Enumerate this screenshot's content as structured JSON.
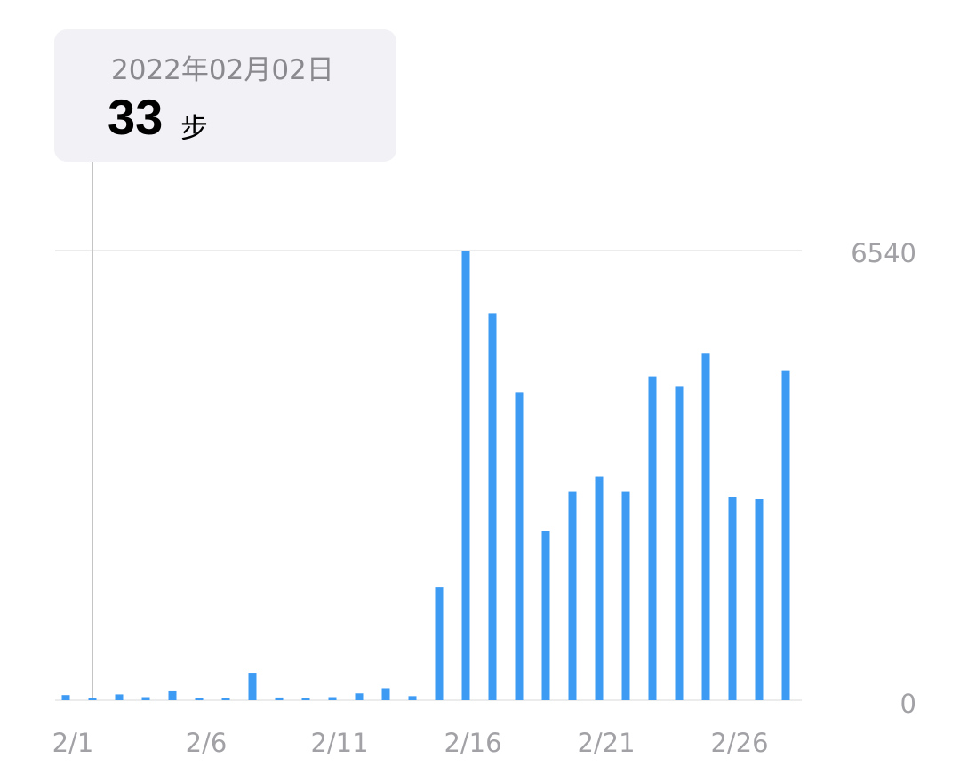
{
  "tooltip": {
    "date": "2022年02月02日",
    "value": "33",
    "unit": "步"
  },
  "chart_data": {
    "type": "bar",
    "x": [
      "2/1",
      "2/2",
      "2/3",
      "2/4",
      "2/5",
      "2/6",
      "2/7",
      "2/8",
      "2/9",
      "2/10",
      "2/11",
      "2/12",
      "2/13",
      "2/14",
      "2/15",
      "2/16",
      "2/17",
      "2/18",
      "2/19",
      "2/20",
      "2/21",
      "2/22",
      "2/23",
      "2/24",
      "2/25",
      "2/26",
      "2/27",
      "2/28"
    ],
    "values": [
      75,
      33,
      85,
      45,
      130,
      35,
      30,
      400,
      40,
      20,
      45,
      100,
      175,
      60,
      1640,
      6540,
      5630,
      4480,
      2460,
      3030,
      3250,
      3030,
      4710,
      4570,
      5050,
      2960,
      2930,
      4800
    ],
    "x_tick_labels": [
      "2/1",
      "2/6",
      "2/11",
      "2/16",
      "2/21",
      "2/26"
    ],
    "y_tick_labels": [
      "6540",
      "0"
    ],
    "ylim": [
      0,
      6540
    ],
    "selected_index": 1,
    "grid": true,
    "colors": {
      "bar": "#3d9bf4",
      "grid": "#ececec",
      "cursor": "#c4c4c4",
      "tooltip_bg": "#f2f1f6",
      "tick_text": "#a2a2a6"
    }
  }
}
